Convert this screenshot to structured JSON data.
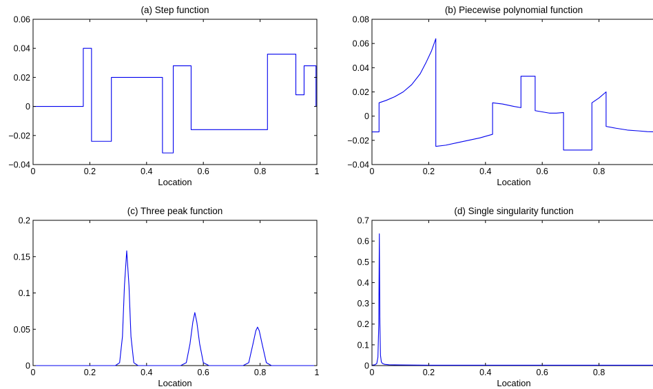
{
  "colors": {
    "series": "#0000ee",
    "axes": "#000000",
    "background": "#ffffff"
  },
  "chart_data": [
    {
      "type": "line",
      "title": "(a) Step function",
      "xlabel": "Location",
      "ylabel": "",
      "xlim": [
        0,
        1
      ],
      "ylim": [
        -0.04,
        0.06
      ],
      "xticks": [
        0,
        0.2,
        0.4,
        0.6,
        0.8,
        1
      ],
      "xtick_labels": [
        "0",
        "0.2",
        "0.4",
        "0.6",
        "0.8",
        "1"
      ],
      "yticks": [
        -0.04,
        -0.02,
        0,
        0.02,
        0.04,
        0.06
      ],
      "ytick_labels": [
        "−0.04",
        "−0.02",
        "0",
        "0.02",
        "0.04",
        "0.06"
      ],
      "grid": false,
      "series": [
        {
          "x": [
            0,
            0.177,
            0.177,
            0.206,
            0.206,
            0.276,
            0.276,
            0.456,
            0.456,
            0.494,
            0.494,
            0.557,
            0.557,
            0.826,
            0.826,
            0.926,
            0.926,
            0.955,
            0.955,
            0.997,
            0.997
          ],
          "y": [
            0,
            0,
            0.04,
            0.04,
            -0.024,
            -0.024,
            0.02,
            0.02,
            -0.032,
            -0.032,
            0.028,
            0.028,
            -0.016,
            -0.016,
            0.036,
            0.036,
            0.008,
            0.008,
            0.028,
            0.028,
            0
          ]
        }
      ]
    },
    {
      "type": "line",
      "title": "(b) Piecewise polynomial function",
      "xlabel": "Location",
      "ylabel": "",
      "xlim": [
        0,
        1
      ],
      "ylim": [
        -0.04,
        0.08
      ],
      "xticks": [
        0,
        0.2,
        0.4,
        0.6,
        0.8
      ],
      "xtick_labels": [
        "0",
        "0.2",
        "0.4",
        "0.6",
        "0.8"
      ],
      "yticks": [
        -0.04,
        -0.02,
        0,
        0.02,
        0.04,
        0.06,
        0.08
      ],
      "ytick_labels": [
        "−0.04",
        "−0.02",
        "0",
        "0.02",
        "0.04",
        "0.06",
        "0.08"
      ],
      "grid": false,
      "series": [
        {
          "x": [
            0,
            0.025,
            0.025,
            0.05,
            0.08,
            0.11,
            0.14,
            0.17,
            0.19,
            0.21,
            0.225,
            0.225,
            0.26,
            0.3,
            0.34,
            0.38,
            0.425,
            0.425,
            0.46,
            0.5,
            0.525,
            0.525,
            0.575,
            0.575,
            0.6,
            0.625,
            0.65,
            0.675,
            0.675,
            0.775,
            0.775,
            0.8,
            0.825,
            0.825,
            0.86,
            0.9,
            0.94,
            0.97,
            1.0
          ],
          "y": [
            -0.013,
            -0.013,
            0.011,
            0.013,
            0.016,
            0.02,
            0.026,
            0.035,
            0.044,
            0.054,
            0.064,
            -0.025,
            -0.024,
            -0.022,
            -0.02,
            -0.018,
            -0.015,
            0.011,
            0.01,
            0.008,
            0.007,
            0.033,
            0.033,
            0.0045,
            0.0035,
            0.0025,
            0.0025,
            0.003,
            -0.028,
            -0.028,
            0.011,
            0.015,
            0.02,
            -0.0085,
            -0.01,
            -0.0115,
            -0.0122,
            -0.0128,
            -0.013
          ]
        }
      ]
    },
    {
      "type": "line",
      "title": "(c) Three peak function",
      "xlabel": "Location",
      "ylabel": "",
      "xlim": [
        0,
        1
      ],
      "ylim": [
        0,
        0.2
      ],
      "xticks": [
        0,
        0.2,
        0.4,
        0.6,
        0.8,
        1
      ],
      "xtick_labels": [
        "0",
        "0.2",
        "0.4",
        "0.6",
        "0.8",
        "1"
      ],
      "yticks": [
        0,
        0.05,
        0.1,
        0.15,
        0.2
      ],
      "ytick_labels": [
        "0",
        "0.05",
        "0.1",
        "0.15",
        "0.2"
      ],
      "grid": false,
      "series": [
        {
          "x": [
            0,
            0.29,
            0.305,
            0.315,
            0.322,
            0.33,
            0.338,
            0.345,
            0.355,
            0.37,
            0.52,
            0.54,
            0.553,
            0.563,
            0.57,
            0.577,
            0.587,
            0.6,
            0.62,
            0.74,
            0.76,
            0.775,
            0.785,
            0.791,
            0.797,
            0.807,
            0.822,
            0.84,
            1.0
          ],
          "y": [
            0,
            0,
            0.004,
            0.04,
            0.11,
            0.158,
            0.11,
            0.04,
            0.004,
            0,
            0,
            0.004,
            0.03,
            0.06,
            0.073,
            0.06,
            0.03,
            0.004,
            0,
            0,
            0.004,
            0.03,
            0.048,
            0.053,
            0.048,
            0.03,
            0.004,
            0,
            0
          ]
        }
      ]
    },
    {
      "type": "line",
      "title": "(d) Single singularity function",
      "xlabel": "Location",
      "ylabel": "",
      "xlim": [
        0,
        1
      ],
      "ylim": [
        0,
        0.7
      ],
      "xticks": [
        0,
        0.2,
        0.4,
        0.6,
        0.8
      ],
      "xtick_labels": [
        "0",
        "0.2",
        "0.4",
        "0.6",
        "0.8"
      ],
      "yticks": [
        0,
        0.1,
        0.2,
        0.3,
        0.4,
        0.5,
        0.6,
        0.7
      ],
      "ytick_labels": [
        "0",
        "0.1",
        "0.2",
        "0.3",
        "0.4",
        "0.5",
        "0.6",
        "0.7"
      ],
      "grid": false,
      "series": [
        {
          "x": [
            0,
            0.01,
            0.017,
            0.021,
            0.024,
            0.026,
            0.028,
            0.03,
            0.033,
            0.037,
            0.045,
            0.06,
            0.1,
            0.2,
            0.4,
            0.6,
            0.8,
            1.0
          ],
          "y": [
            0.002,
            0.004,
            0.01,
            0.04,
            0.2,
            0.635,
            0.2,
            0.05,
            0.018,
            0.01,
            0.006,
            0.004,
            0.003,
            0.002,
            0.002,
            0.002,
            0.002,
            0.002
          ]
        }
      ]
    }
  ]
}
